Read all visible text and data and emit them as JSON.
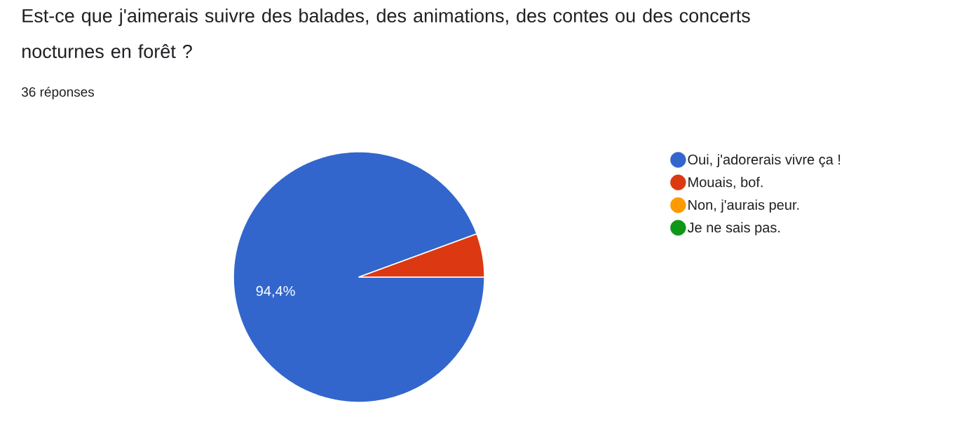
{
  "chart_data": {
    "type": "pie",
    "title": "Est-ce que j'aimerais suivre des balades, des animations, des contes ou des concerts nocturnes en forêt ?",
    "subtitle": "36 réponses",
    "categories": [
      "Oui, j'adorerais vivre ça !",
      "Mouais, bof.",
      "Non, j'aurais peur.",
      "Je ne sais pas."
    ],
    "values": [
      94.4,
      5.6,
      0,
      0
    ],
    "colors": [
      "#3366cc",
      "#dc3912",
      "#ff9900",
      "#109618"
    ],
    "value_labels": [
      "94,4%",
      null,
      null,
      null
    ],
    "legend": "right"
  }
}
